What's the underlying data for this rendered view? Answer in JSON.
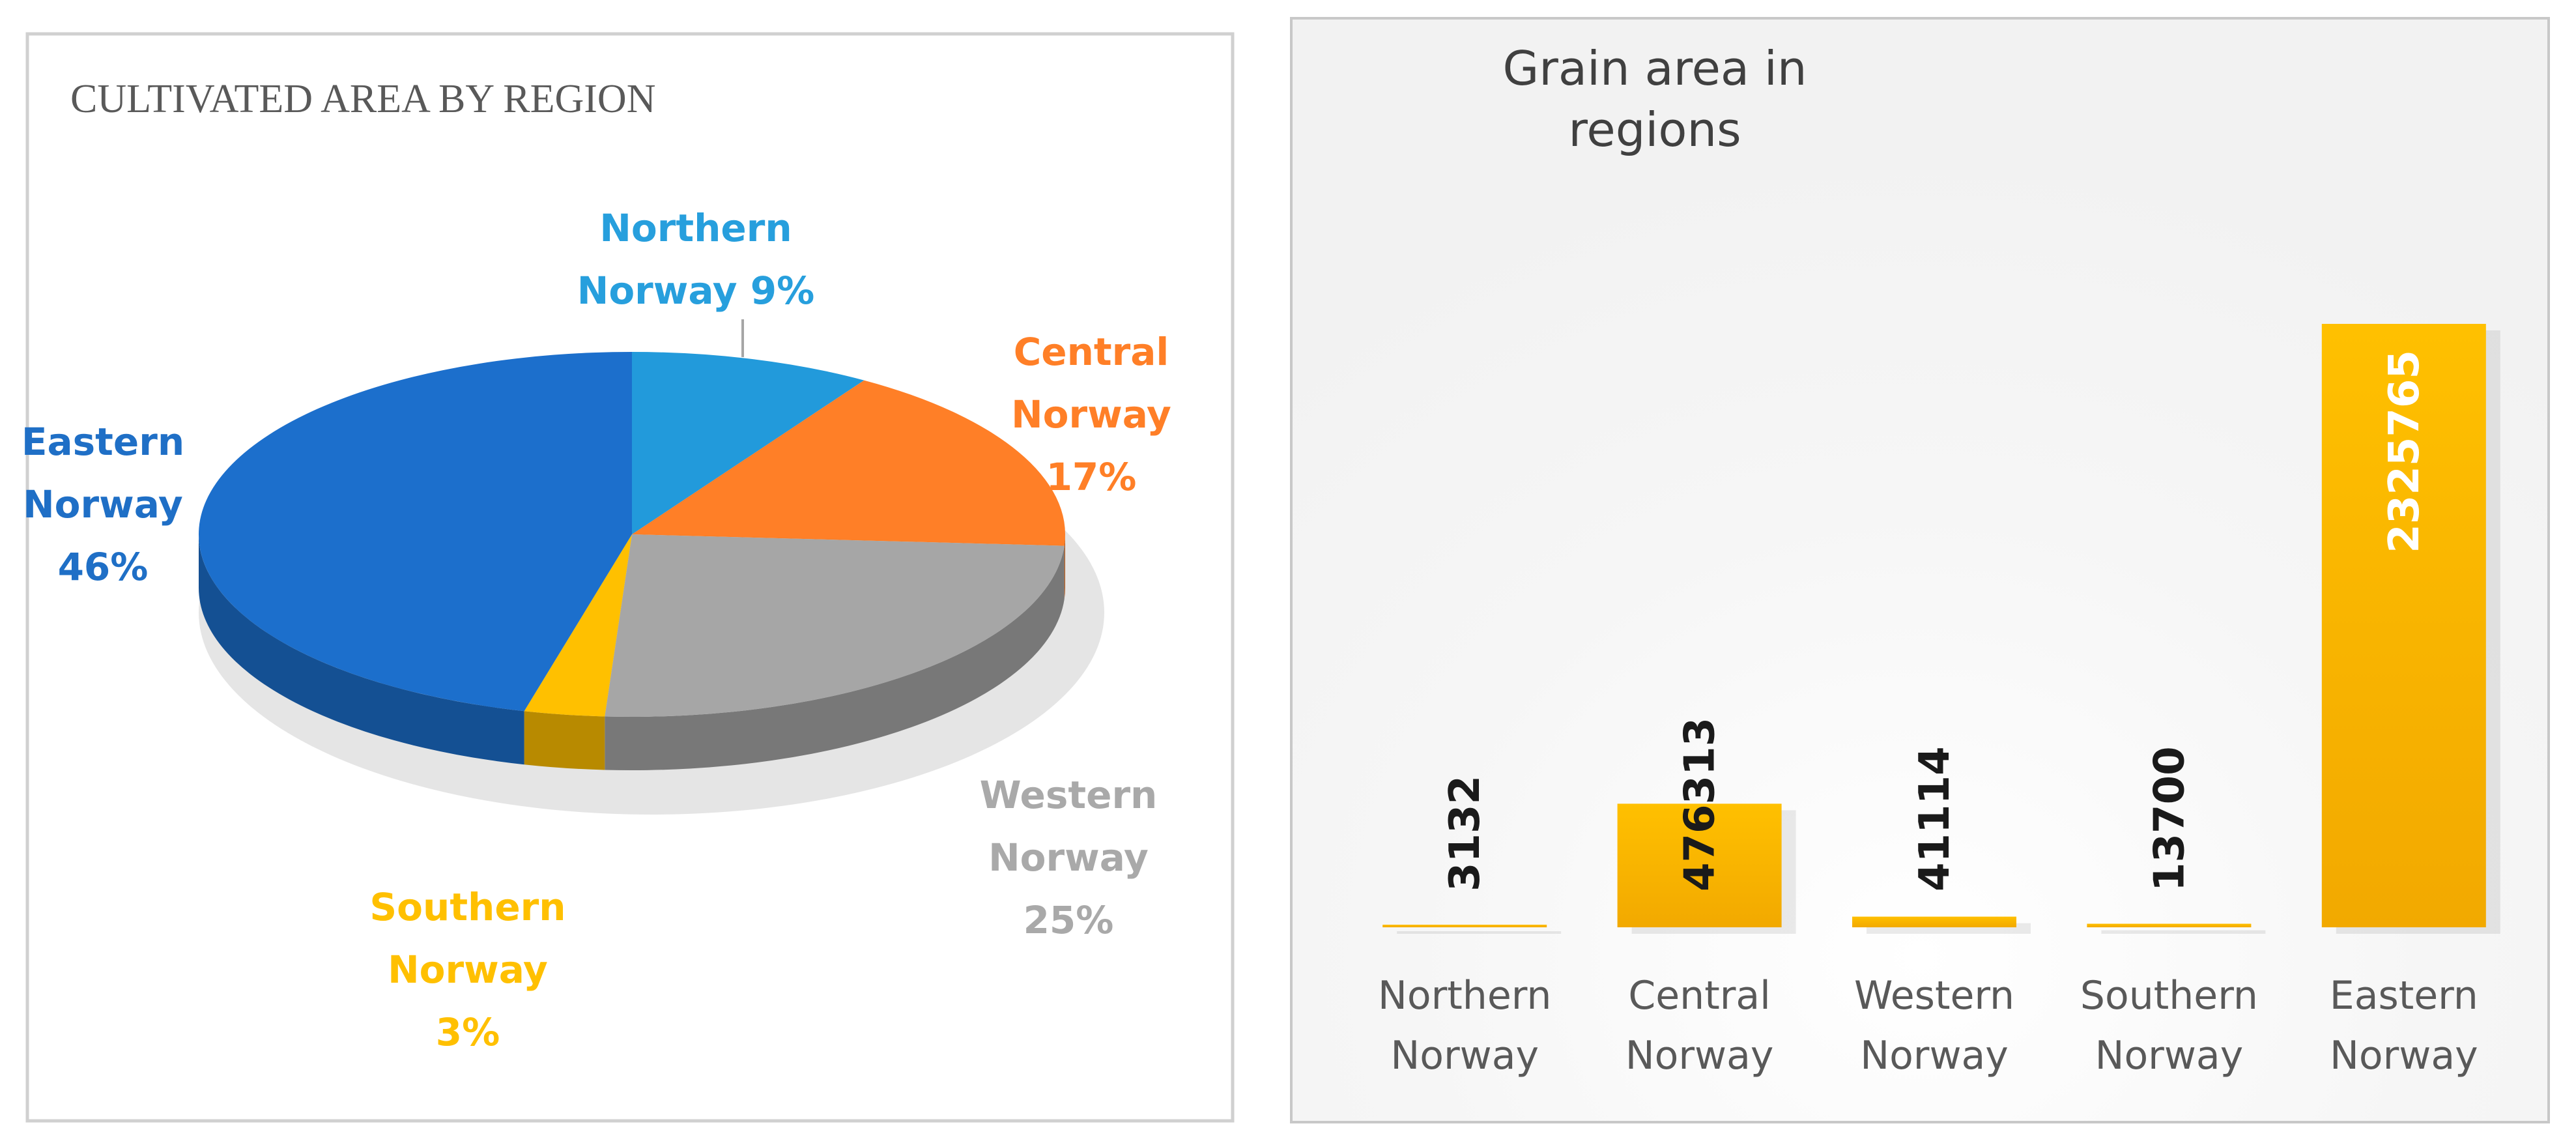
{
  "chart_data": [
    {
      "type": "pie",
      "title": "CULTIVATED AREA BY REGION",
      "categories": [
        "Northern Norway",
        "Central Norway",
        "Western Norway",
        "Southern Norway",
        "Eastern Norway"
      ],
      "values": [
        9,
        17,
        25,
        3,
        46
      ],
      "value_labels": [
        "9%",
        "17%",
        "25%",
        "3%",
        "46%"
      ],
      "label_lines": [
        [
          "Northern",
          "Norway 9%"
        ],
        [
          "Central",
          "Norway",
          "17%"
        ],
        [
          "Western",
          "Norway",
          "25%"
        ],
        [
          "Southern",
          "Norway",
          "3%"
        ],
        [
          "Eastern",
          "Norway",
          "46%"
        ]
      ],
      "colors": [
        "#229ADB",
        "#FF7F27",
        "#A6A6A6",
        "#FFC000",
        "#1C6FCC"
      ],
      "label_colors": [
        "#279FDD",
        "#FF7F27",
        "#A9A9A9",
        "#FFC000",
        "#1F6FC6"
      ],
      "style": "3d-pie",
      "legend": "none"
    },
    {
      "type": "bar",
      "title": "Grain area in regions",
      "title_lines": [
        "Grain area in",
        "regions"
      ],
      "categories": [
        "Northern Norway",
        "Central Norway",
        "Western Norway",
        "Southern Norway",
        "Eastern Norway"
      ],
      "category_lines": [
        [
          "Northern",
          "Norway"
        ],
        [
          "Central",
          "Norway"
        ],
        [
          "Western",
          "Norway"
        ],
        [
          "Southern",
          "Norway"
        ],
        [
          "Eastern",
          "Norway"
        ]
      ],
      "values": [
        3132,
        476313,
        41114,
        13700,
        2325765
      ],
      "data_labels": [
        "3132",
        "476313",
        "41114",
        "13700",
        "2325765"
      ],
      "ylim": [
        0,
        2325765
      ],
      "bar_color": "#FFC000",
      "grid": false,
      "legend": "none"
    }
  ]
}
